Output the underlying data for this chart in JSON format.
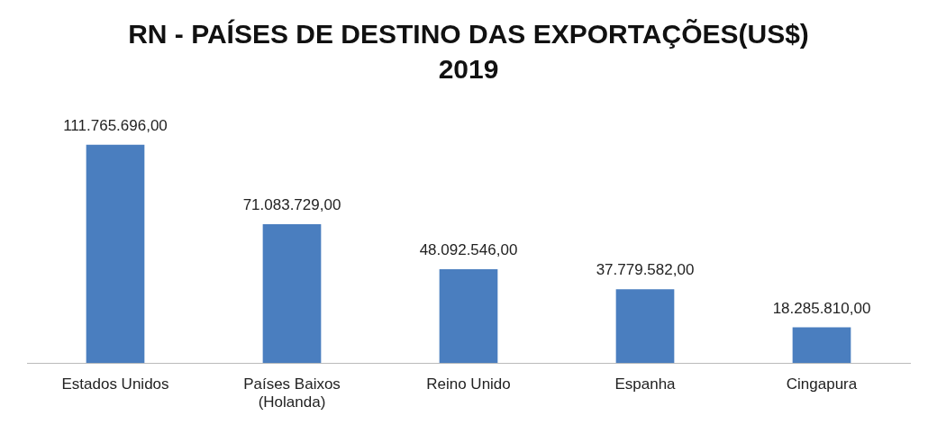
{
  "chart_data": {
    "type": "bar",
    "title": "RN - PAÍSES DE DESTINO DAS EXPORTAÇÕES(US$)\n2019",
    "categories": [
      "Estados Unidos",
      "Países Baixos\n(Holanda)",
      "Reino Unido",
      "Espanha",
      "Cingapura"
    ],
    "values": [
      111765696,
      71083729,
      48092546,
      37779582,
      18285810
    ],
    "value_labels": [
      "111.765.696,00",
      "71.083.729,00",
      "48.092.546,00",
      "37.779.582,00",
      "18.285.810,00"
    ],
    "color": "#4a7ebf",
    "grid": false,
    "legend": false
  }
}
